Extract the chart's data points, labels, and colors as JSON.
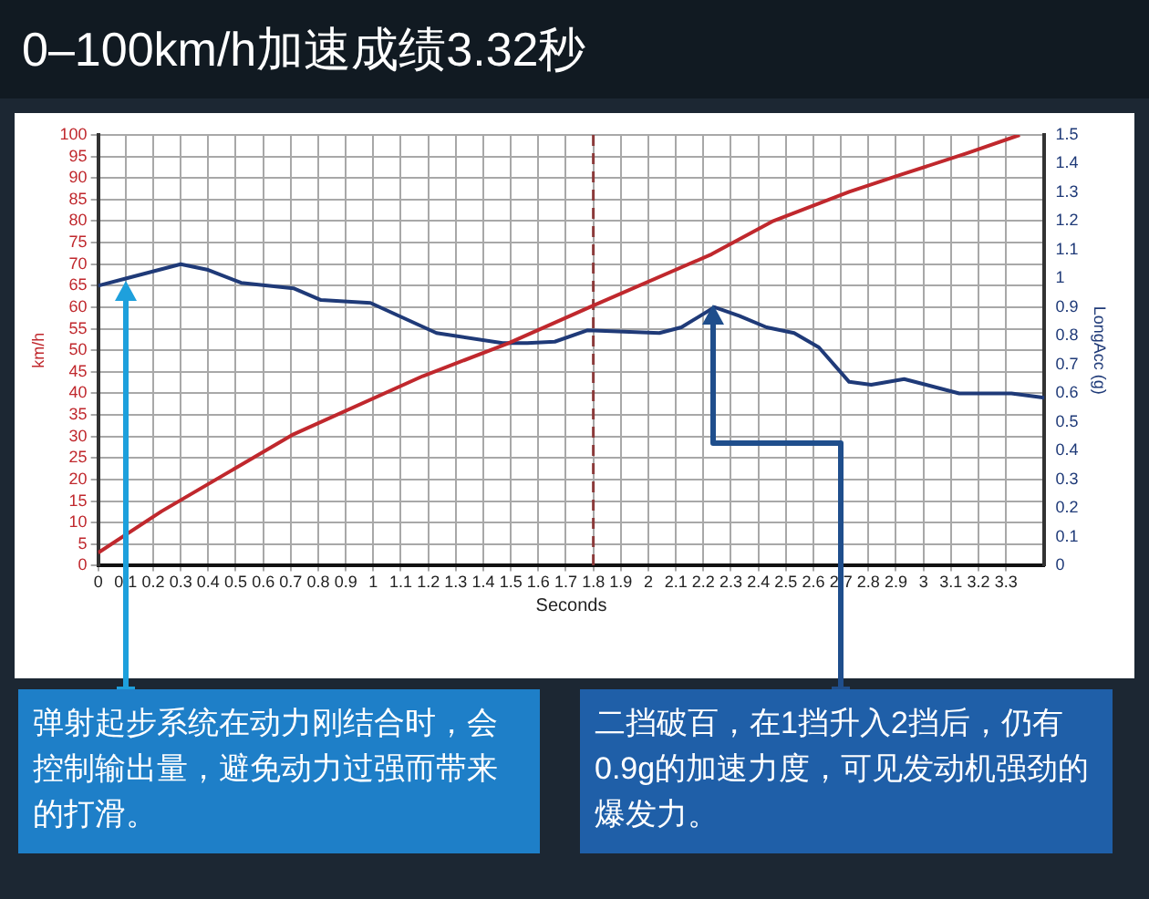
{
  "chart_data": {
    "type": "line",
    "title": "0–100km/h加速成绩3.32秒",
    "xlabel": "Seconds",
    "ylabel": "km/h",
    "y2label": "LongAcc (g)",
    "xlim": [
      0,
      3.44
    ],
    "xticks": [
      0,
      0.1,
      0.2,
      0.3,
      0.4,
      0.5,
      0.6,
      0.7,
      0.8,
      0.9,
      1,
      1.1,
      1.2,
      1.3,
      1.4,
      1.5,
      1.6,
      1.7,
      1.8,
      1.9,
      2,
      2.1,
      2.2,
      2.3,
      2.4,
      2.5,
      2.6,
      2.7,
      2.8,
      2.9,
      3,
      3.1,
      3.2,
      3.3
    ],
    "ylim": [
      0,
      100
    ],
    "yticks": [
      0,
      5,
      10,
      15,
      20,
      25,
      30,
      35,
      40,
      45,
      50,
      55,
      60,
      65,
      70,
      75,
      80,
      85,
      90,
      95,
      100
    ],
    "y2lim": [
      0,
      1.5
    ],
    "y2ticks": [
      0,
      0.1,
      0.2,
      0.3,
      0.4,
      0.5,
      0.6,
      0.7,
      0.8,
      0.9,
      1,
      1.1,
      1.2,
      1.3,
      1.4,
      1.5
    ],
    "grid": true,
    "legend": false,
    "marker": "none",
    "line_style": "solid",
    "series": [
      {
        "color": "#c0282d",
        "x": [
          0,
          0.23,
          0.71,
          1.18,
          1.49,
          1.8,
          2.23,
          2.45,
          2.73,
          2.92,
          3.16,
          3.35
        ],
        "values": [
          3,
          12.6,
          30.5,
          44,
          51.6,
          60.4,
          72.3,
          79.9,
          86.8,
          90.8,
          95.8,
          100
        ]
      },
      {
        "color": "#1f3a78",
        "axis": "y2",
        "x": [
          0,
          0.1,
          0.3,
          0.4,
          0.52,
          0.71,
          0.81,
          0.99,
          1.23,
          1.47,
          1.56,
          1.66,
          1.78,
          2.04,
          2.12,
          2.24,
          2.33,
          2.43,
          2.53,
          2.62,
          2.73,
          2.81,
          2.93,
          3.13,
          3.32,
          3.44
        ],
        "values": [
          0.975,
          1.0,
          1.05,
          1.03,
          0.985,
          0.966,
          0.925,
          0.915,
          0.81,
          0.775,
          0.775,
          0.78,
          0.82,
          0.81,
          0.83,
          0.9,
          0.87,
          0.83,
          0.81,
          0.76,
          0.64,
          0.63,
          0.65,
          0.6,
          0.6,
          0.585
        ]
      }
    ],
    "ref_lines": [
      {
        "axis": "x",
        "value": 1.8,
        "color": "#8b3a3a",
        "line_style": "dashed"
      }
    ],
    "annotations": [
      "弹射起步系统在动力刚结合时，会控制输出量，避免动力过强而带来的打滑。",
      "二挡破百，在1挡升入2挡后，仍有0.9g的加速力度，可见发动机强劲的爆发力。"
    ]
  }
}
